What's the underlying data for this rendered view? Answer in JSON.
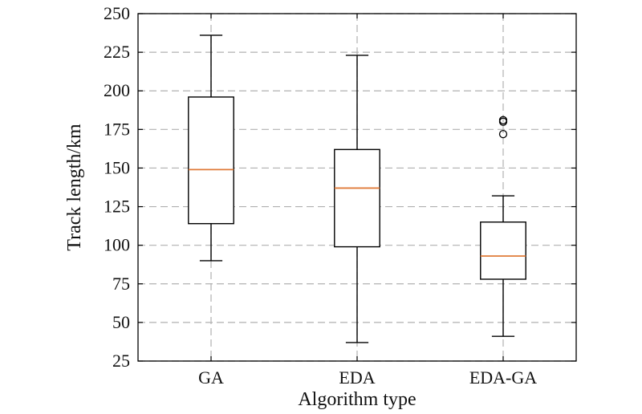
{
  "chart_data": {
    "type": "box",
    "title": "",
    "xlabel": "Algorithm type",
    "ylabel": "Track length/km",
    "ylim": [
      25,
      250
    ],
    "yticks": [
      25,
      50,
      75,
      100,
      125,
      150,
      175,
      200,
      225,
      250
    ],
    "categories": [
      "GA",
      "EDA",
      "EDA-GA"
    ],
    "boxes": [
      {
        "category": "GA",
        "whisker_low": 90,
        "q1": 114,
        "median": 149,
        "q3": 196,
        "whisker_high": 236,
        "outliers": []
      },
      {
        "category": "EDA",
        "whisker_low": 37,
        "q1": 99,
        "median": 137,
        "q3": 162,
        "whisker_high": 223,
        "outliers": []
      },
      {
        "category": "EDA-GA",
        "whisker_low": 41,
        "q1": 78,
        "median": 93,
        "q3": 115,
        "whisker_high": 132,
        "outliers": [
          172,
          180,
          181
        ]
      }
    ],
    "grid": true,
    "colors": {
      "box": "#000000",
      "median": "#e07b39",
      "grid": "#b0b0b0"
    }
  }
}
